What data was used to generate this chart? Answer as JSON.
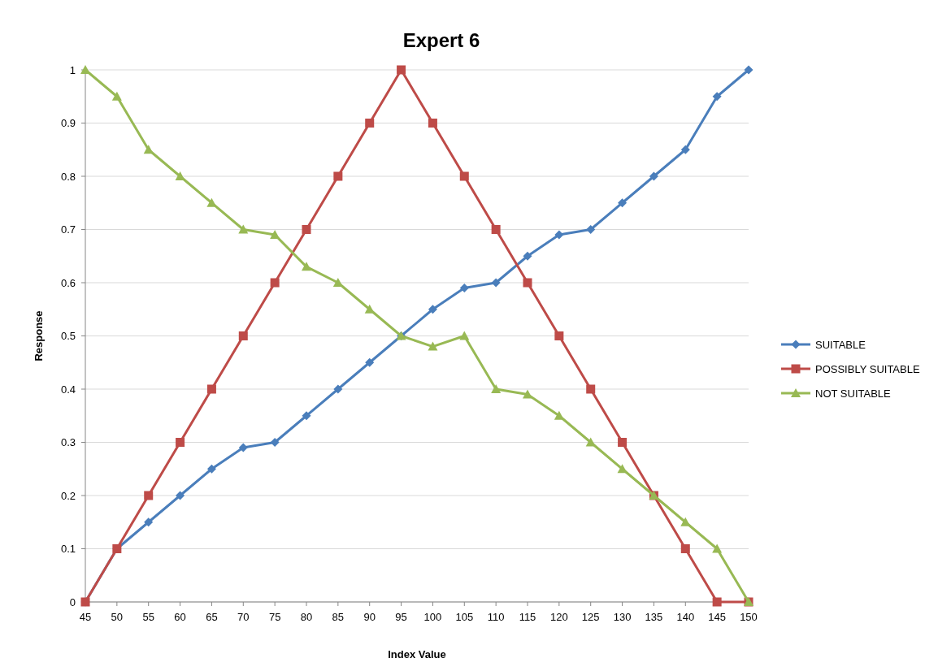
{
  "chart_data": {
    "type": "line",
    "title": "Expert 6",
    "xlabel": "Index Value",
    "ylabel": "Response",
    "categories": [
      "45",
      "50",
      "55",
      "60",
      "65",
      "70",
      "75",
      "80",
      "85",
      "90",
      "95",
      "100",
      "105",
      "110",
      "115",
      "120",
      "125",
      "130",
      "135",
      "140",
      "145",
      "150"
    ],
    "series": [
      {
        "name": "SUITABLE",
        "color": "#4a7ebb",
        "marker": "diamond",
        "values": [
          0,
          0.1,
          0.15,
          0.2,
          0.25,
          0.29,
          0.3,
          0.35,
          0.4,
          0.45,
          0.5,
          0.55,
          0.59,
          0.6,
          0.65,
          0.69,
          0.7,
          0.75,
          0.8,
          0.85,
          0.95,
          1
        ]
      },
      {
        "name": "POSSIBLY SUITABLE",
        "color": "#be4b48",
        "marker": "square",
        "values": [
          0,
          0.1,
          0.2,
          0.3,
          0.4,
          0.5,
          0.6,
          0.7,
          0.8,
          0.9,
          1,
          0.9,
          0.8,
          0.7,
          0.6,
          0.5,
          0.4,
          0.3,
          0.2,
          0.1,
          0,
          0
        ]
      },
      {
        "name": "NOT SUITABLE",
        "color": "#98b954",
        "marker": "triangle",
        "values": [
          1,
          0.95,
          0.85,
          0.8,
          0.75,
          0.7,
          0.69,
          0.63,
          0.6,
          0.55,
          0.5,
          0.48,
          0.5,
          0.4,
          0.39,
          0.35,
          0.3,
          0.25,
          0.2,
          0.15,
          0.1,
          0
        ]
      }
    ],
    "ylim": [
      0,
      1
    ],
    "yticks": [
      0,
      0.1,
      0.2,
      0.3,
      0.4,
      0.5,
      0.6,
      0.7,
      0.8,
      0.9,
      1
    ],
    "grid": "y",
    "legend": "right",
    "line_style": "solid"
  }
}
